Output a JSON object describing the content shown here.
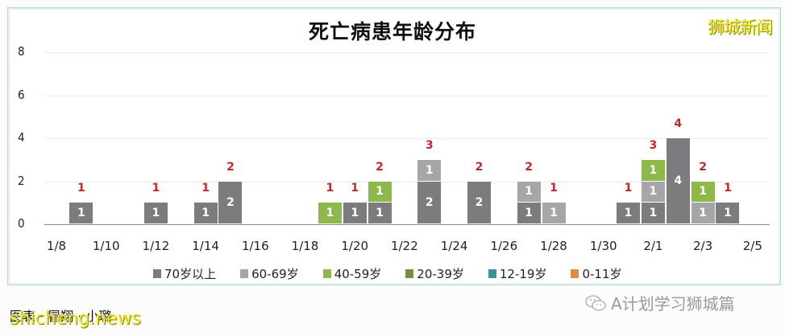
{
  "chart_data": {
    "type": "bar",
    "stacked": true,
    "title": "死亡病患年龄分布",
    "xlabel": "",
    "ylabel": "",
    "ylim": [
      0,
      8
    ],
    "yticks": [
      "0",
      "2",
      "4",
      "6",
      "8"
    ],
    "xticks": [
      "1/8",
      "1/10",
      "1/12",
      "1/14",
      "1/16",
      "1/18",
      "1/20",
      "1/22",
      "1/24",
      "1/26",
      "1/28",
      "1/30",
      "2/1",
      "2/3",
      "2/5"
    ],
    "categories": [
      "1/9",
      "1/12",
      "1/14",
      "1/15",
      "1/19",
      "1/20",
      "1/21",
      "1/23",
      "1/25",
      "1/27",
      "1/28",
      "1/31",
      "2/1",
      "2/2",
      "2/3",
      "2/4"
    ],
    "series": [
      {
        "name": "70岁以上",
        "color": "#7c7b7d",
        "values": [
          1,
          1,
          1,
          2,
          0,
          1,
          1,
          2,
          2,
          1,
          0,
          1,
          1,
          4,
          0,
          1
        ]
      },
      {
        "name": "60-69岁",
        "color": "#a6a5a7",
        "values": [
          0,
          0,
          0,
          0,
          0,
          0,
          0,
          1,
          0,
          1,
          1,
          0,
          1,
          0,
          1,
          0
        ]
      },
      {
        "name": "40-59岁",
        "color": "#8db84a",
        "values": [
          0,
          0,
          0,
          0,
          1,
          0,
          1,
          0,
          0,
          0,
          0,
          0,
          1,
          0,
          1,
          0
        ]
      },
      {
        "name": "20-39岁",
        "color": "#7a8c3e",
        "values": [
          0,
          0,
          0,
          0,
          0,
          0,
          0,
          0,
          0,
          0,
          0,
          0,
          0,
          0,
          0,
          0
        ]
      },
      {
        "name": "12-19岁",
        "color": "#3f8ea0",
        "values": [
          0,
          0,
          0,
          0,
          0,
          0,
          0,
          0,
          0,
          0,
          0,
          0,
          0,
          0,
          0,
          0
        ]
      },
      {
        "name": "0-11岁",
        "color": "#e08a45",
        "values": [
          0,
          0,
          0,
          0,
          0,
          0,
          0,
          0,
          0,
          0,
          0,
          0,
          0,
          0,
          0,
          0
        ]
      }
    ],
    "totals": [
      1,
      1,
      1,
      2,
      1,
      1,
      2,
      3,
      2,
      2,
      1,
      1,
      3,
      4,
      2,
      1
    ],
    "legend_position": "bottom",
    "grid": true
  },
  "brand": "狮城新闻",
  "credit": "图表 · 冒翔 · 小璐",
  "site_watermark": "shicheng.news",
  "wechat_account": "A计划学习狮城篇"
}
